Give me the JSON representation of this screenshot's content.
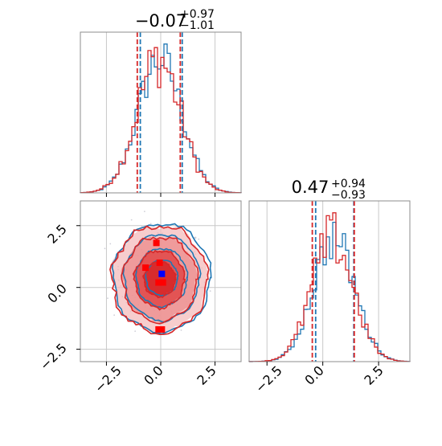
{
  "chart_data": {
    "type": "corner",
    "colors": {
      "run_a": "#1f77b4",
      "run_b": "#d62728",
      "marker_a": "#0000ff",
      "marker_b": "#ff0000"
    },
    "grid": true,
    "panels": [
      {
        "id": "hist_p1",
        "type": "histogram",
        "title": {
          "value": "−0.07",
          "plus": "+0.97",
          "minus": "−1.01"
        },
        "xlim": [
          -3.7,
          3.7
        ],
        "quantiles": {
          "run_a": [
            -0.94,
            -0.07,
            0.99
          ],
          "run_b": [
            -1.08,
            -0.07,
            0.9
          ]
        },
        "xticks": [
          -2.5,
          0.0,
          2.5
        ]
      },
      {
        "id": "scatter_p1_p2",
        "type": "contour-scatter",
        "xlim": [
          -3.7,
          3.7
        ],
        "ylim": [
          -3.0,
          3.5
        ],
        "xticks": [
          -2.5,
          0.0,
          2.5
        ],
        "yticks": [
          -2.5,
          0.0,
          2.5
        ],
        "xtick_labels": [
          "−2.5",
          "0.0",
          "2.5"
        ],
        "ytick_labels": [
          "2.5",
          "0.0",
          "−2.5"
        ],
        "marker_a": [
          0.05,
          0.55
        ],
        "markers_b": [
          [
            -0.7,
            0.8
          ],
          [
            -0.2,
            1.8
          ],
          [
            -0.1,
            0.2
          ],
          [
            0.1,
            0.2
          ],
          [
            -0.1,
            -1.7
          ],
          [
            0.05,
            -1.7
          ],
          [
            -0.05,
            1.0
          ]
        ]
      },
      {
        "id": "hist_p2",
        "type": "histogram",
        "title": {
          "value": "0.47",
          "plus": "+0.94",
          "minus": "−0.93"
        },
        "xlim": [
          -3.3,
          3.9
        ],
        "quantiles": {
          "run_a": [
            -0.32,
            0.47,
            1.39
          ],
          "run_b": [
            -0.47,
            0.47,
            1.41
          ]
        },
        "xticks": [
          -2.5,
          0.0,
          2.5
        ],
        "xtick_labels": [
          "−2.5",
          "0.0",
          "2.5"
        ]
      }
    ]
  }
}
